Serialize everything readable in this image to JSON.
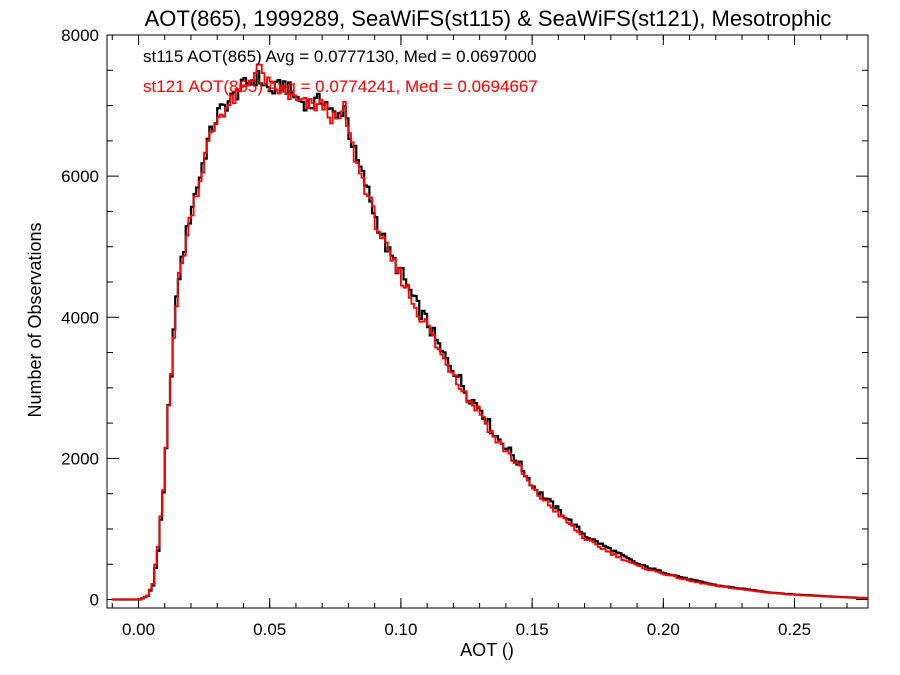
{
  "chart_data": {
    "type": "line",
    "step": true,
    "title": "AOT(865), 1999289, SeaWiFS(st115) & SeaWiFS(st121), Mesotrophic",
    "xlabel": "AOT ()",
    "ylabel": "Number of Observations",
    "xlim": [
      -0.012,
      0.278
    ],
    "ylim": [
      -120,
      8000
    ],
    "xticks": [
      0.0,
      0.05,
      0.1,
      0.15,
      0.2,
      0.25
    ],
    "xtick_labels": [
      "0.00",
      "0.05",
      "0.10",
      "0.15",
      "0.20",
      "0.25"
    ],
    "yticks": [
      0,
      2000,
      4000,
      6000,
      8000
    ],
    "ytick_labels": [
      "0",
      "2000",
      "4000",
      "6000",
      "8000"
    ],
    "annotations": [
      {
        "text": "st115 AOT(865) Avg = 0.0777130, Med = 0.0697000",
        "color": "#000000"
      },
      {
        "text": "st121 AOT(865) Avg = 0.0774241, Med = 0.0694667",
        "color": "#ff0000"
      }
    ],
    "series": [
      {
        "color": "#000000",
        "x": [
          -0.01,
          0.0,
          0.003,
          0.005,
          0.007,
          0.009,
          0.011,
          0.013,
          0.015,
          0.017,
          0.02,
          0.023,
          0.026,
          0.03,
          0.035,
          0.04,
          0.045,
          0.05,
          0.055,
          0.06,
          0.065,
          0.07,
          0.075,
          0.078,
          0.08,
          0.083,
          0.086,
          0.09,
          0.095,
          0.1,
          0.105,
          0.11,
          0.115,
          0.12,
          0.125,
          0.13,
          0.135,
          0.14,
          0.145,
          0.15,
          0.16,
          0.17,
          0.18,
          0.19,
          0.2,
          0.21,
          0.22,
          0.23,
          0.24,
          0.25,
          0.26,
          0.27,
          0.277
        ],
        "y": [
          0,
          0,
          50,
          200,
          700,
          1500,
          2700,
          3800,
          4600,
          5000,
          5600,
          6000,
          6500,
          6900,
          7100,
          7300,
          7400,
          7200,
          7300,
          7100,
          7000,
          7100,
          6800,
          7000,
          6600,
          6200,
          5900,
          5400,
          4900,
          4600,
          4200,
          3900,
          3500,
          3250,
          2900,
          2700,
          2350,
          2150,
          1900,
          1600,
          1250,
          900,
          700,
          500,
          380,
          280,
          200,
          150,
          100,
          70,
          50,
          30,
          20
        ]
      },
      {
        "color": "#ff0000",
        "x": [
          -0.01,
          0.0,
          0.003,
          0.005,
          0.007,
          0.009,
          0.011,
          0.013,
          0.015,
          0.017,
          0.02,
          0.023,
          0.026,
          0.03,
          0.035,
          0.04,
          0.045,
          0.05,
          0.055,
          0.06,
          0.065,
          0.07,
          0.075,
          0.078,
          0.08,
          0.083,
          0.086,
          0.09,
          0.095,
          0.1,
          0.105,
          0.11,
          0.115,
          0.12,
          0.125,
          0.13,
          0.135,
          0.14,
          0.145,
          0.15,
          0.16,
          0.17,
          0.18,
          0.19,
          0.2,
          0.21,
          0.22,
          0.23,
          0.24,
          0.25,
          0.26,
          0.27,
          0.277
        ],
        "y": [
          0,
          0,
          60,
          220,
          750,
          1550,
          2750,
          3800,
          4550,
          4950,
          5550,
          5950,
          6450,
          6850,
          7050,
          7250,
          7550,
          7250,
          7200,
          7050,
          7000,
          7000,
          6750,
          6950,
          6550,
          6150,
          5850,
          5350,
          4850,
          4550,
          4150,
          3850,
          3450,
          3200,
          2850,
          2650,
          2300,
          2100,
          1850,
          1550,
          1200,
          850,
          650,
          470,
          360,
          260,
          190,
          140,
          95,
          65,
          45,
          28,
          18
        ]
      }
    ]
  }
}
